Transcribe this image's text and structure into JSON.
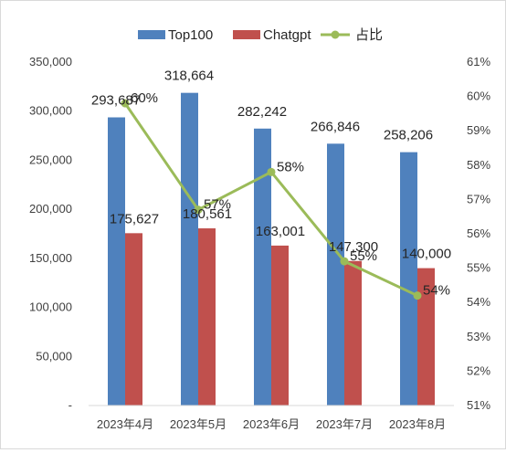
{
  "chart_data": {
    "type": "bar",
    "categories": [
      "2023年4月",
      "2023年5月",
      "2023年6月",
      "2023年7月",
      "2023年8月"
    ],
    "series": [
      {
        "name": "Top100",
        "type": "bar",
        "axis": "left",
        "color": "#4f81bd",
        "values": [
          293687,
          318664,
          282242,
          266846,
          258206
        ],
        "labels": [
          "293,687",
          "318,664",
          "282,242",
          "266,846",
          "258,206"
        ]
      },
      {
        "name": "Chatgpt",
        "type": "bar",
        "axis": "left",
        "color": "#c0504d",
        "values": [
          175627,
          180561,
          163001,
          147300,
          140000
        ],
        "labels": [
          "175,627",
          "180,561",
          "163,001",
          "147,300",
          "140,000"
        ]
      },
      {
        "name": "占比",
        "type": "line",
        "axis": "right",
        "color": "#9bbb59",
        "values": [
          0.598,
          0.567,
          0.578,
          0.552,
          0.542
        ],
        "labels": [
          "60%",
          "57%",
          "58%",
          "55%",
          "54%"
        ]
      }
    ],
    "left_axis": {
      "ylim": [
        0,
        350000
      ],
      "ticks": [
        "-",
        "50,000",
        "100,000",
        "150,000",
        "200,000",
        "250,000",
        "300,000",
        "350,000"
      ]
    },
    "right_axis": {
      "ylim": [
        0.51,
        0.61
      ],
      "ticks": [
        "51%",
        "52%",
        "53%",
        "54%",
        "55%",
        "56%",
        "57%",
        "58%",
        "59%",
        "60%",
        "61%"
      ]
    },
    "legend_position": "top",
    "grid": false
  }
}
